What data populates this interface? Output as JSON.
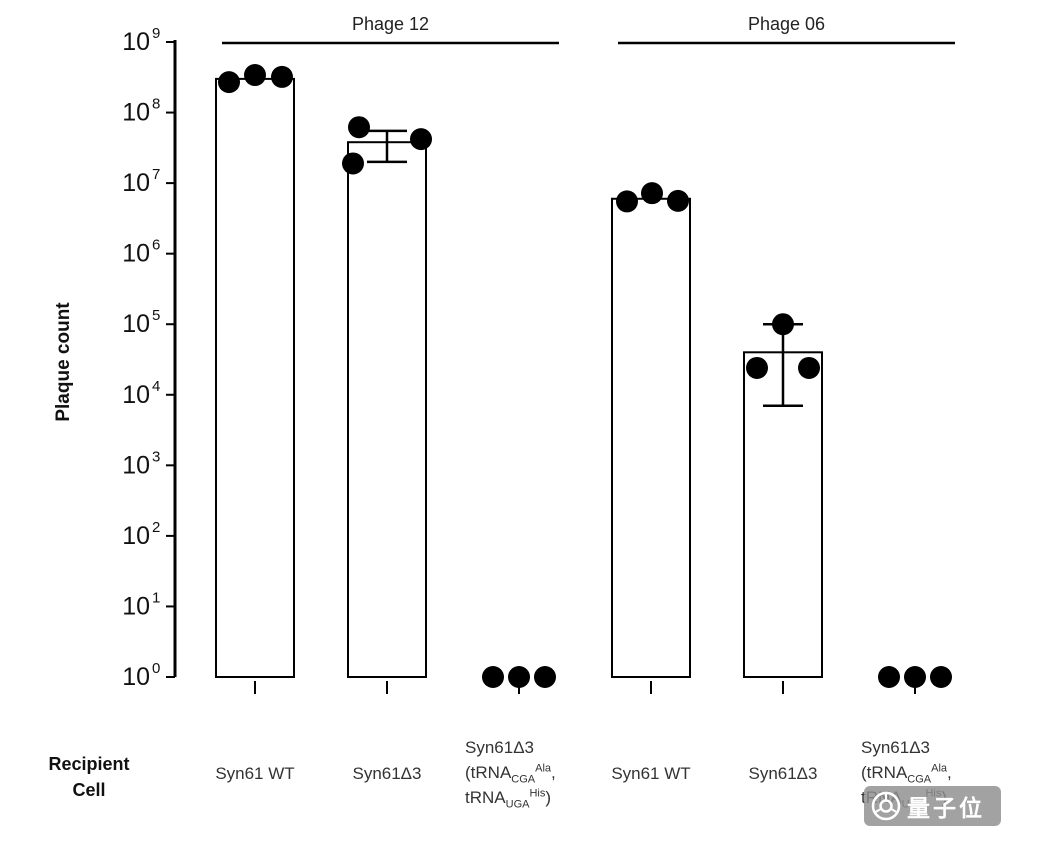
{
  "ylabel_title": "Plaque count",
  "recipient_label": {
    "line1": "Recipient",
    "line2": "Cell"
  },
  "watermark": {
    "text": "量子位",
    "icon": "qbitai-aperture-logo-icon",
    "bg_color": "#8d8d8d",
    "text_color": "#ffffff"
  },
  "chart_data": {
    "type": "bar",
    "title": "",
    "ylabel": "Plaque count",
    "xlabel": "Recipient Cell",
    "yscale": "log",
    "ylim": [
      1,
      1000000000
    ],
    "grid": false,
    "legend": null,
    "ytick_exponents": [
      0,
      1,
      2,
      3,
      4,
      5,
      6,
      7,
      8,
      9
    ],
    "groups": [
      {
        "label": "Phage 12",
        "category_indexes": [
          0,
          1,
          2
        ]
      },
      {
        "label": "Phage 06",
        "category_indexes": [
          3,
          4,
          5
        ]
      }
    ],
    "categories": [
      {
        "lines": [
          [
            {
              "t": "Syn61 WT"
            }
          ]
        ]
      },
      {
        "lines": [
          [
            {
              "t": "Syn61Δ3"
            }
          ]
        ]
      },
      {
        "lines": [
          [
            {
              "t": "Syn61Δ3"
            }
          ],
          [
            {
              "t": "(tRNA"
            },
            {
              "sub": "CGA"
            },
            {
              "sup": "Ala"
            },
            {
              "t": ","
            }
          ],
          [
            {
              "t": "tRNA"
            },
            {
              "sub": "UGA"
            },
            {
              "sup": "His"
            },
            {
              "t": ")"
            }
          ]
        ]
      },
      {
        "lines": [
          [
            {
              "t": "Syn61 WT"
            }
          ]
        ]
      },
      {
        "lines": [
          [
            {
              "t": "Syn61Δ3"
            }
          ]
        ]
      },
      {
        "lines": [
          [
            {
              "t": "Syn61Δ3"
            }
          ],
          [
            {
              "t": "(tRNA"
            },
            {
              "sub": "CGA"
            },
            {
              "sup": "Ala"
            },
            {
              "t": ","
            }
          ],
          [
            {
              "t": "tRNA"
            },
            {
              "sub": "UGA"
            },
            {
              "sup": "His"
            },
            {
              "t": ")"
            }
          ]
        ]
      }
    ],
    "bars": [
      {
        "group": "Phage 12",
        "category": "Syn61 WT",
        "bar_top": 300000000.0,
        "points": [
          270000000.0,
          340000000.0,
          320000000.0
        ],
        "jitter": [
          -26,
          0,
          27
        ],
        "error": null
      },
      {
        "group": "Phage 12",
        "category": "Syn61Δ3",
        "bar_top": 38000000.0,
        "points": [
          62000000.0,
          19000000.0,
          42000000.0
        ],
        "jitter": [
          -28,
          -34,
          34
        ],
        "error": {
          "low": 20000000.0,
          "high": 55000000.0
        }
      },
      {
        "group": "Phage 12",
        "category": "Syn61Δ3 (tRNA-CGA-Ala, tRNA-UGA-His)",
        "bar_top": null,
        "points": [
          1,
          1,
          1
        ],
        "jitter": [
          -26,
          0,
          26
        ],
        "error": null
      },
      {
        "group": "Phage 06",
        "category": "Syn61 WT",
        "bar_top": 6000000.0,
        "points": [
          5500000.0,
          7200000.0,
          5600000.0
        ],
        "jitter": [
          -24,
          1,
          27
        ],
        "error": null
      },
      {
        "group": "Phage 06",
        "category": "Syn61Δ3",
        "bar_top": 40000.0,
        "points": [
          24000.0,
          100000.0,
          24000.0
        ],
        "jitter": [
          -26,
          0,
          26
        ],
        "error": {
          "low": 7000.0,
          "high": 100000.0
        }
      },
      {
        "group": "Phage 06",
        "category": "Syn61Δ3 (tRNA-CGA-Ala, tRNA-UGA-His)",
        "bar_top": null,
        "points": [
          1,
          1,
          1
        ],
        "jitter": [
          -26,
          0,
          26
        ],
        "error": null
      }
    ]
  }
}
